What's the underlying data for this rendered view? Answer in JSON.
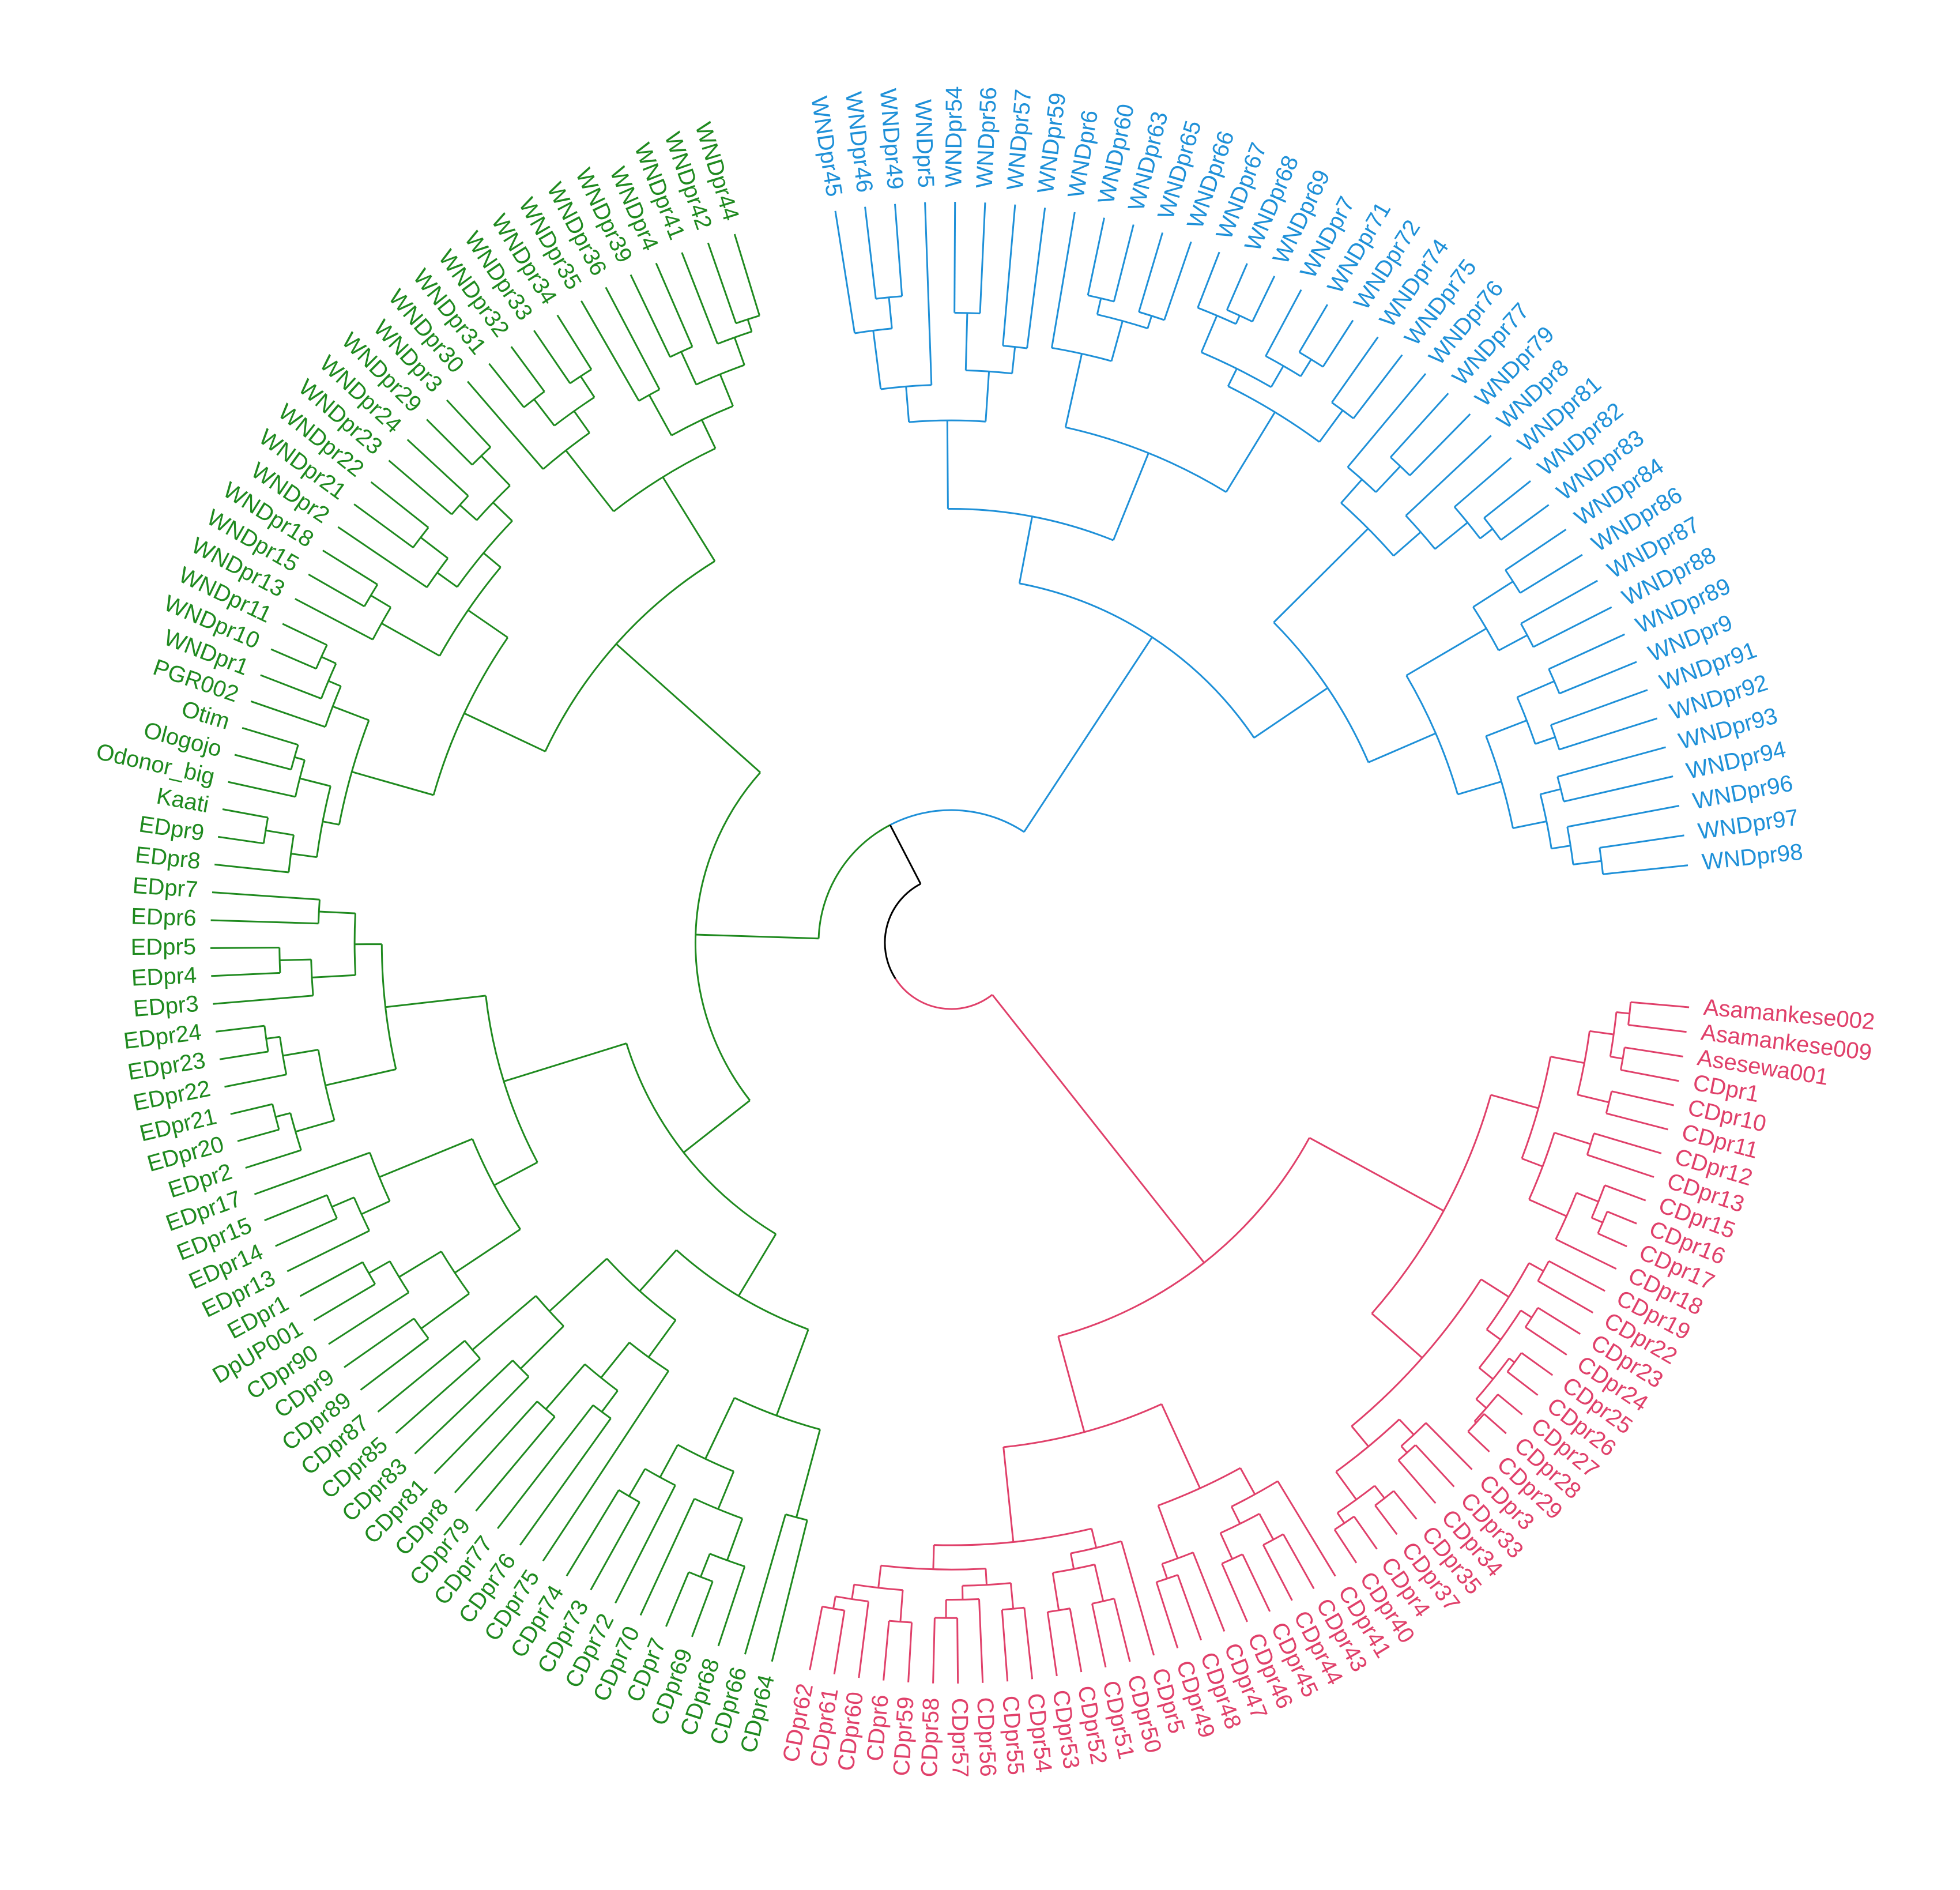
{
  "colors": {
    "blue": "#1e90d8",
    "red": "#e0406a",
    "green": "#1f8a1f",
    "black": "#000000",
    "green_label": "#7ab800"
  },
  "clusters": [
    {
      "name": "blue",
      "color_key": "blue",
      "labels": [
        "WNDpr45",
        "WNDpr46",
        "WNDpr49",
        "WNDpr5",
        "WNDpr54",
        "WNDpr56",
        "WNDpr57",
        "WNDpr59",
        "WNDpr6",
        "WNDpr60",
        "WNDpr63",
        "WNDpr65",
        "WNDpr66",
        "WNDpr67",
        "WNDpr68",
        "WNDpr69",
        "WNDpr7",
        "WNDpr71",
        "WNDpr72",
        "WNDpr74",
        "WNDpr75",
        "WNDpr76",
        "WNDpr77",
        "WNDpr79",
        "WNDpr8",
        "WNDpr81",
        "WNDpr82",
        "WNDpr83",
        "WNDpr84",
        "WNDpr86",
        "WNDpr87",
        "WNDpr88",
        "WNDpr89",
        "WNDpr9",
        "WNDpr91",
        "WNDpr92",
        "WNDpr93",
        "WNDpr94",
        "WNDpr96",
        "WNDpr97",
        "WNDpr98"
      ]
    },
    {
      "name": "red",
      "color_key": "red",
      "labels": [
        "Asamankese002",
        "Asamankese009",
        "Asesewa001",
        "CDpr1",
        "CDpr10",
        "CDpr11",
        "CDpr12",
        "CDpr13",
        "CDpr15",
        "CDpr16",
        "CDpr17",
        "CDpr18",
        "CDpr19",
        "CDpr22",
        "CDpr23",
        "CDpr24",
        "CDpr25",
        "CDpr26",
        "CDpr27",
        "CDpr28",
        "CDpr29",
        "CDpr3",
        "CDpr33",
        "CDpr34",
        "CDpr35",
        "CDpr37",
        "CDpr4",
        "CDpr40",
        "CDpr41",
        "CDpr43",
        "CDpr44",
        "CDpr45",
        "CDpr46",
        "CDpr47",
        "CDpr48",
        "CDpr49",
        "CDpr5",
        "CDpr50",
        "CDpr51",
        "CDpr52",
        "CDpr53",
        "CDpr54",
        "CDpr55",
        "CDpr56",
        "CDpr57",
        "CDpr58",
        "CDpr59",
        "CDpr6",
        "CDpr60",
        "CDpr61",
        "CDpr62"
      ]
    },
    {
      "name": "green",
      "color_key": "green",
      "labels": [
        "CDpr64",
        "CDpr66",
        "CDpr68",
        "CDpr69",
        "CDpr7",
        "CDpr70",
        "CDpr72",
        "CDpr73",
        "CDpr74",
        "CDpr75",
        "CDpr76",
        "CDpr77",
        "CDpr79",
        "CDpr8",
        "CDpr81",
        "CDpr83",
        "CDpr85",
        "CDpr87",
        "CDpr89",
        "CDpr9",
        "CDpr90",
        "DpUP001",
        "EDpr1",
        "EDpr13",
        "EDpr14",
        "EDpr15",
        "EDpr17",
        "EDpr2",
        "EDpr20",
        "EDpr21",
        "EDpr22",
        "EDpr23",
        "EDpr24",
        "EDpr3",
        "EDpr4",
        "EDpr5",
        "EDpr6",
        "EDpr7",
        "EDpr8",
        "EDpr9",
        "Kaati",
        "Odonor_big",
        "Ologojo",
        "Otim",
        "PGR002",
        "WNDpr1",
        "WNDpr10",
        "WNDpr11",
        "WNDpr13",
        "WNDpr15",
        "WNDpr18",
        "WNDpr2",
        "WNDpr21",
        "WNDpr22",
        "WNDpr23",
        "WNDpr24",
        "WNDpr29",
        "WNDpr3",
        "WNDpr30",
        "WNDpr31",
        "WNDpr32",
        "WNDpr33",
        "WNDpr34",
        "WNDpr35",
        "WNDpr36",
        "WNDpr39",
        "WNDpr4",
        "WNDpr41",
        "WNDpr42",
        "WNDpr44"
      ]
    }
  ]
}
